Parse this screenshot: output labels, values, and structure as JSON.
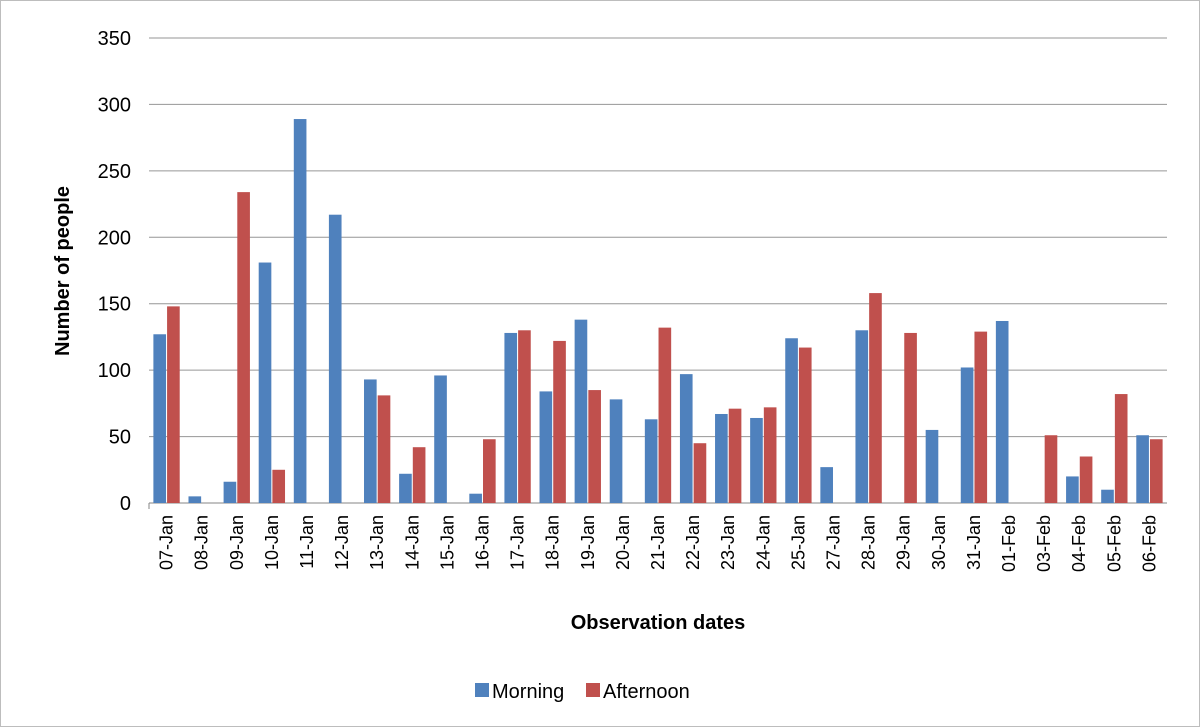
{
  "chart_data": {
    "type": "bar",
    "title": "",
    "xlabel": "Observation dates",
    "ylabel": "Number of people",
    "ylim": [
      0,
      350
    ],
    "yticks": [
      0,
      50,
      100,
      150,
      200,
      250,
      300,
      350
    ],
    "grid": true,
    "legend_position": "bottom",
    "categories": [
      "07-Jan",
      "08-Jan",
      "09-Jan",
      "10-Jan",
      "11-Jan",
      "12-Jan",
      "13-Jan",
      "14-Jan",
      "15-Jan",
      "16-Jan",
      "17-Jan",
      "18-Jan",
      "19-Jan",
      "20-Jan",
      "21-Jan",
      "22-Jan",
      "23-Jan",
      "24-Jan",
      "25-Jan",
      "27-Jan",
      "28-Jan",
      "29-Jan",
      "30-Jan",
      "31-Jan",
      "01-Feb",
      "03-Feb",
      "04-Feb",
      "05-Feb",
      "06-Feb"
    ],
    "series": [
      {
        "name": "Morning",
        "color": "#4f81bd",
        "values": [
          127,
          5,
          16,
          181,
          289,
          217,
          93,
          22,
          96,
          7,
          128,
          84,
          138,
          78,
          63,
          97,
          67,
          64,
          124,
          27,
          130,
          0,
          55,
          102,
          137,
          0,
          20,
          10,
          51
        ]
      },
      {
        "name": "Afternoon",
        "color": "#c0504d",
        "values": [
          148,
          0,
          234,
          25,
          0,
          0,
          81,
          42,
          0,
          48,
          130,
          122,
          85,
          0,
          132,
          45,
          71,
          72,
          117,
          0,
          158,
          128,
          0,
          129,
          0,
          51,
          35,
          82,
          48
        ]
      }
    ]
  }
}
